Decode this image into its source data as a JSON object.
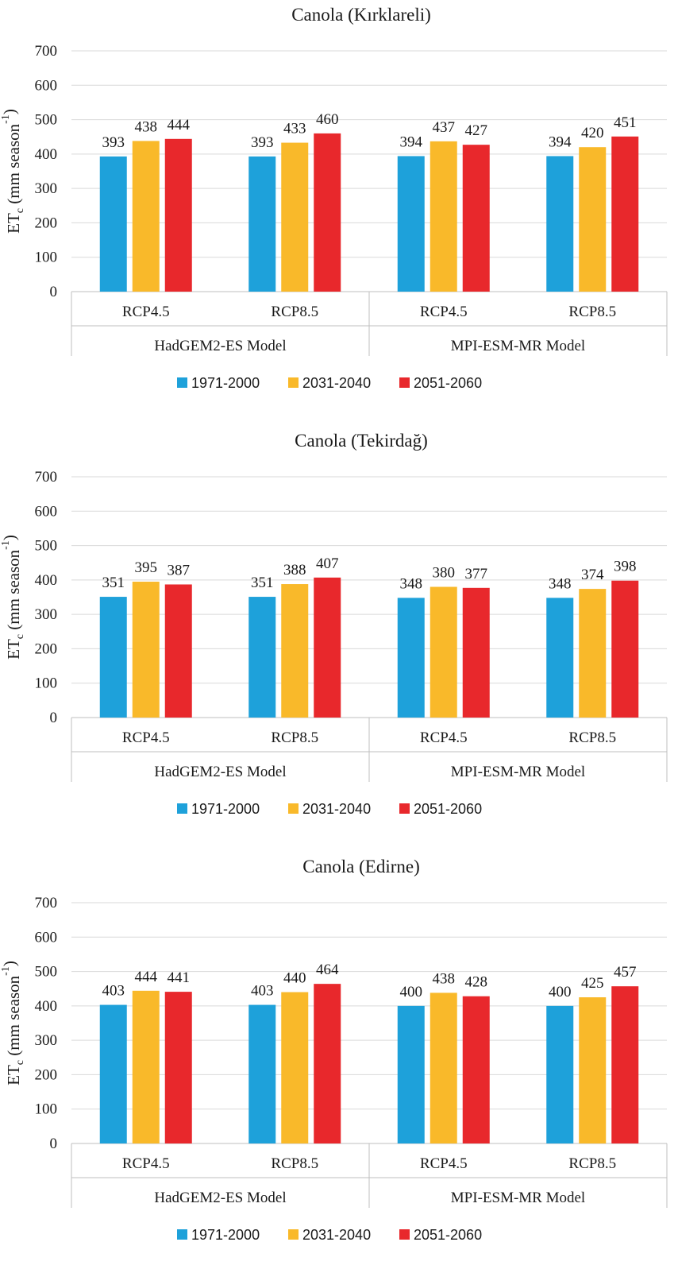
{
  "chart_data": [
    {
      "type": "bar",
      "title": "Canola (Kırklareli)",
      "ylabel_main": "ET",
      "ylabel_sub": "c",
      "ylabel_rest": " (mm season",
      "ylabel_sup": "-1",
      "ylabel_end": ")",
      "ylim": [
        0,
        700
      ],
      "yticks": [
        "0",
        "100",
        "200",
        "300",
        "400",
        "500",
        "600",
        "700"
      ],
      "groups": [
        "HadGEM2-ES Model",
        "MPI-ESM-MR Model"
      ],
      "categories": [
        "RCP4.5",
        "RCP8.5",
        "RCP4.5",
        "RCP8.5"
      ],
      "series": [
        {
          "name": "1971-2000",
          "color": "#1ea1da",
          "values": [
            393,
            393,
            394,
            394
          ]
        },
        {
          "name": "2031-2040",
          "color": "#f9b92a",
          "values": [
            438,
            433,
            437,
            420
          ]
        },
        {
          "name": "2051-2060",
          "color": "#e8282c",
          "values": [
            444,
            460,
            427,
            451
          ]
        }
      ],
      "grid": true,
      "legend": "bottom"
    },
    {
      "type": "bar",
      "title": "Canola (Tekirdağ)",
      "ylabel_main": "ET",
      "ylabel_sub": "c",
      "ylabel_rest": " (mm season",
      "ylabel_sup": "-1",
      "ylabel_end": ")",
      "ylim": [
        0,
        700
      ],
      "yticks": [
        "0",
        "100",
        "200",
        "300",
        "400",
        "500",
        "600",
        "700"
      ],
      "groups": [
        "HadGEM2-ES Model",
        "MPI-ESM-MR Model"
      ],
      "categories": [
        "RCP4.5",
        "RCP8.5",
        "RCP4.5",
        "RCP8.5"
      ],
      "series": [
        {
          "name": "1971-2000",
          "color": "#1ea1da",
          "values": [
            351,
            351,
            348,
            348
          ]
        },
        {
          "name": "2031-2040",
          "color": "#f9b92a",
          "values": [
            395,
            388,
            380,
            374
          ]
        },
        {
          "name": "2051-2060",
          "color": "#e8282c",
          "values": [
            387,
            407,
            377,
            398
          ]
        }
      ],
      "grid": true,
      "legend": "bottom"
    },
    {
      "type": "bar",
      "title": "Canola (Edirne)",
      "ylabel_main": "ET",
      "ylabel_sub": "c",
      "ylabel_rest": " (mm season",
      "ylabel_sup": "-1",
      "ylabel_end": ")",
      "ylim": [
        0,
        700
      ],
      "yticks": [
        "0",
        "100",
        "200",
        "300",
        "400",
        "500",
        "600",
        "700"
      ],
      "groups": [
        "HadGEM2-ES Model",
        "MPI-ESM-MR Model"
      ],
      "categories": [
        "RCP4.5",
        "RCP8.5",
        "RCP4.5",
        "RCP8.5"
      ],
      "series": [
        {
          "name": "1971-2000",
          "color": "#1ea1da",
          "values": [
            403,
            403,
            400,
            400
          ]
        },
        {
          "name": "2031-2040",
          "color": "#f9b92a",
          "values": [
            444,
            440,
            438,
            425
          ]
        },
        {
          "name": "2051-2060",
          "color": "#e8282c",
          "values": [
            441,
            464,
            428,
            457
          ]
        }
      ],
      "grid": true,
      "legend": "bottom"
    }
  ]
}
